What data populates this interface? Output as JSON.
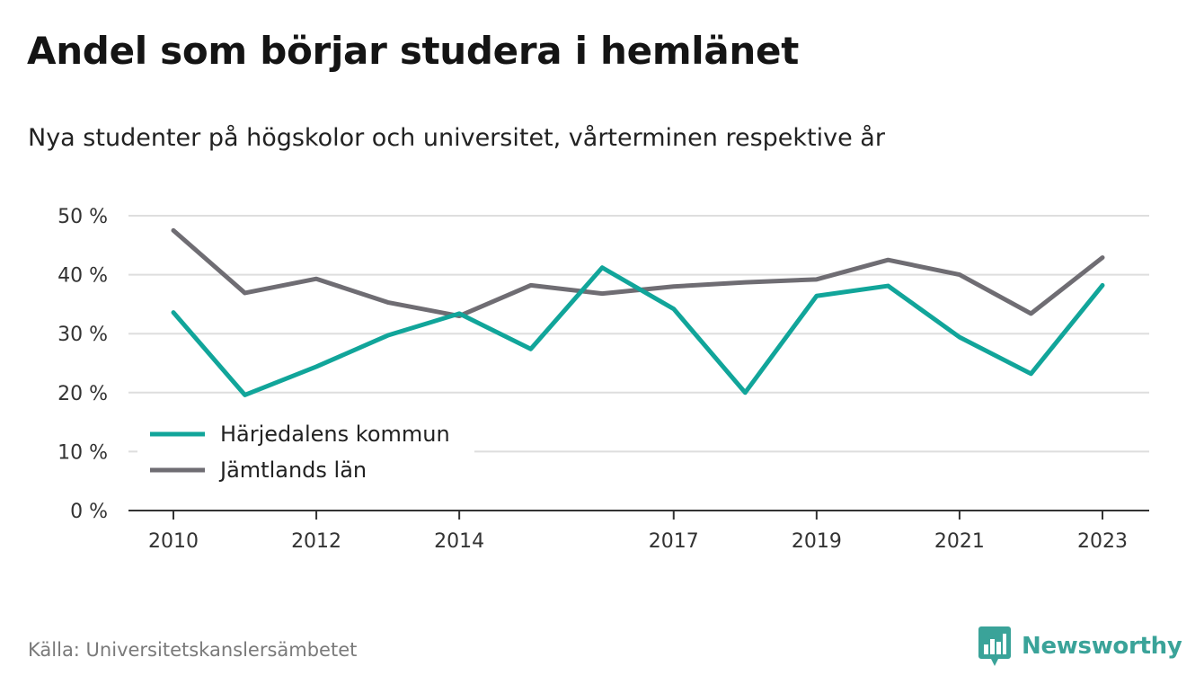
{
  "title": "Andel som börjar studera i hemlänet",
  "subtitle": "Nya studenter på högskolor och universitet, vårterminen respektive år",
  "source": "Källa: Universitetskanslersämbetet",
  "brand": {
    "name": "Newsworthy",
    "icon": "newsworthy-logo-icon",
    "color": "#3aa399"
  },
  "chart_data": {
    "type": "line",
    "x": [
      2010,
      2011,
      2012,
      2013,
      2014,
      2015,
      2016,
      2017,
      2018,
      2019,
      2020,
      2021,
      2022,
      2023
    ],
    "x_tick_labels": [
      "2010",
      "2012",
      "2014",
      "2017",
      "2019",
      "2021",
      "2023"
    ],
    "y_tick_labels": [
      "0 %",
      "10 %",
      "20 %",
      "30 %",
      "40 %",
      "50 %"
    ],
    "ylim": [
      0,
      50
    ],
    "grid": true,
    "legend_position": "bottom-left",
    "series": [
      {
        "name": "Härjedalens kommun",
        "color": "#11a59a",
        "values": [
          33.6,
          19.6,
          24.4,
          29.7,
          33.4,
          27.4,
          41.2,
          34.2,
          20.0,
          36.4,
          38.1,
          29.4,
          23.2,
          38.2
        ]
      },
      {
        "name": "Jämtlands län",
        "color": "#6f6d73",
        "values": [
          47.5,
          36.9,
          39.3,
          35.3,
          33.0,
          38.2,
          36.8,
          38.0,
          38.7,
          39.2,
          42.5,
          40.0,
          33.4,
          42.9
        ]
      }
    ]
  }
}
